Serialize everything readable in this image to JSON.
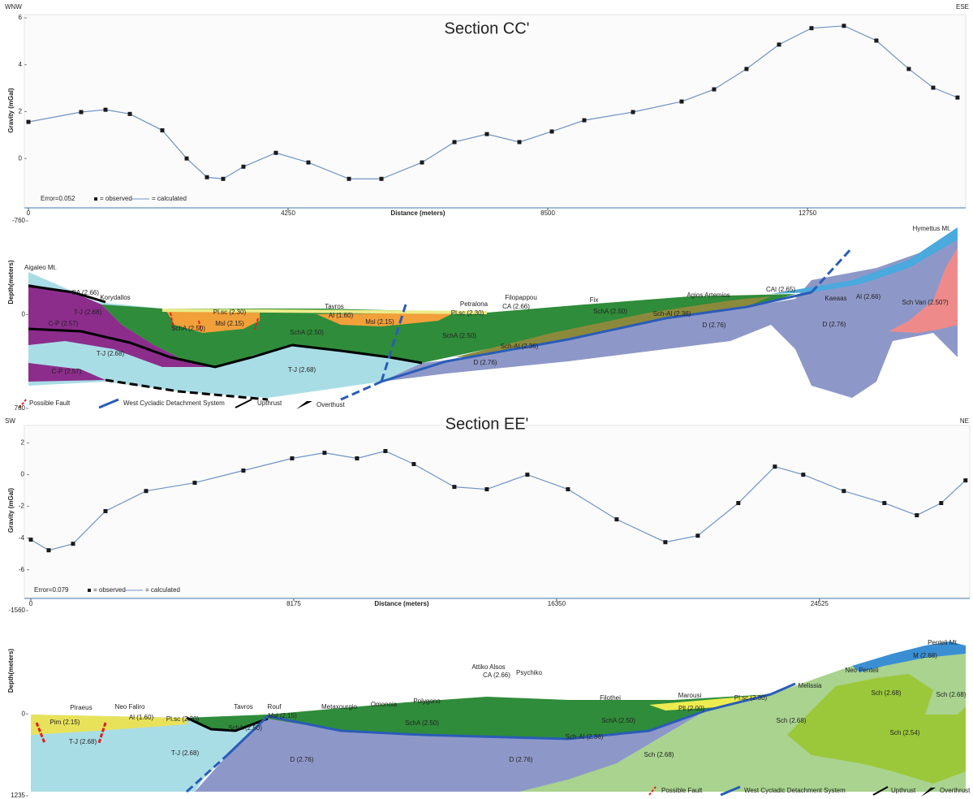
{
  "chart_data": [
    {
      "type": "line",
      "title": "Section CC'",
      "direction_left": "WNW",
      "direction_right": "ESE",
      "y_label": "Gravity (mGal)",
      "x_label": "Distance (meters)",
      "fit_label": "Error=0.052",
      "xlim": [
        0,
        15206
      ],
      "xticks": [
        0,
        4250,
        8500,
        12750
      ],
      "ylim": [
        -1.9,
        6
      ],
      "yticks": [
        0,
        2,
        4,
        6
      ],
      "x": [
        0,
        863,
        1262,
        1660,
        2191,
        2590,
        2922,
        3187,
        3519,
        4050,
        4582,
        5246,
        5777,
        6441,
        6972,
        7503,
        8035,
        8566,
        9097,
        9894,
        10690,
        11221,
        11752,
        12284,
        12815,
        13346,
        13877,
        14408,
        14807,
        15205
      ],
      "series": [
        {
          "name": "= observed",
          "color": "#1a1a1a",
          "values": [
            1.56,
            1.98,
            2.08,
            1.9,
            1.2,
            0,
            -0.8,
            -0.87,
            -0.35,
            0.24,
            -0.17,
            -0.87,
            -0.87,
            -0.17,
            0.7,
            1.04,
            0.7,
            1.15,
            1.63,
            1.98,
            2.43,
            2.95,
            3.82,
            4.86,
            5.56,
            5.66,
            5.03,
            3.82,
            3.02,
            2.6
          ]
        },
        {
          "name": "= calculated",
          "color": "#6f93c4",
          "values": [
            1.56,
            1.98,
            2.08,
            1.9,
            1.2,
            0,
            -0.8,
            -0.87,
            -0.35,
            0.24,
            -0.17,
            -0.87,
            -0.87,
            -0.17,
            0.7,
            1.04,
            0.7,
            1.15,
            1.63,
            1.98,
            2.43,
            2.95,
            3.82,
            4.86,
            5.56,
            5.66,
            5.03,
            3.82,
            3.02,
            2.6
          ]
        }
      ]
    },
    {
      "type": "section",
      "y_label": "Depth(meters)",
      "ylim": [
        -760,
        760
      ],
      "yticks": [
        -760,
        0,
        760
      ],
      "labels": [
        "Aigaleo Mt.",
        "CA (2.66)",
        "Korydallos",
        "T-J (2.68)",
        "C-P (2.57)",
        "Pl.sc (2.30)",
        "Msl (2.15)",
        "SchA (2.50)",
        "Tavros",
        "Al (1.60)",
        "Msl (2.15)",
        "SchA (2.50)",
        "T-J (2.68)",
        "T-J (2.68)",
        "C-P (2.57)",
        "Petralona",
        "Pl.sc (2.30)",
        "Filopappou",
        "CA (2.66)",
        "Fix",
        "SchA (2.50)",
        "Agios Artemios",
        "Sch-Al (2.36)",
        "SchA (2.50)",
        "Sch-Al (2.36)",
        "D (2.76)",
        "D (2.76)",
        "CAl (2.65)",
        "Kaeaas",
        "Al (2.66)",
        "Hymettus Mt.",
        "Sch Vari (2.50?)",
        "D (2.76)"
      ],
      "legend": [
        "Possible Fault",
        "West Cycladic Detachment System",
        "Upthrust",
        "Overthust"
      ]
    },
    {
      "type": "line",
      "title": "Section EE'",
      "direction_left": "SW",
      "direction_right": "NE",
      "y_label": "Gravity (mGal)",
      "x_label": "Distance (meters)",
      "fit_label": "Error=0.079",
      "xlim": [
        0,
        29070
      ],
      "xticks": [
        0,
        8175,
        16350,
        24525
      ],
      "ylim": [
        -7.4,
        2.9
      ],
      "yticks": [
        -6,
        -4,
        -2,
        0,
        2
      ],
      "x": [
        0,
        555,
        1312,
        2321,
        3583,
        5096,
        6610,
        8124,
        9133,
        10142,
        11025,
        11908,
        13170,
        14179,
        15440,
        16702,
        18216,
        19730,
        20739,
        22000,
        23136,
        24019,
        25280,
        26542,
        27551,
        28308,
        29065
      ],
      "series": [
        {
          "name": "= observed",
          "color": "#1a1a1a",
          "values": [
            -4.1,
            -4.77,
            -4.36,
            -2.3,
            -1.03,
            -0.51,
            0.26,
            1.03,
            1.38,
            1.03,
            1.49,
            0.67,
            -0.77,
            -0.92,
            0,
            -0.92,
            -2.82,
            -4.26,
            -3.85,
            -1.79,
            0.51,
            0,
            -1.03,
            -1.79,
            -2.56,
            -1.79,
            -0.36
          ]
        },
        {
          "name": "= calculated",
          "color": "#6f93c4",
          "values": [
            -4.1,
            -4.77,
            -4.36,
            -2.3,
            -1.03,
            -0.51,
            0.26,
            1.03,
            1.38,
            1.03,
            1.49,
            0.67,
            -0.77,
            -0.92,
            0,
            -0.92,
            -2.82,
            -4.26,
            -3.85,
            -1.79,
            0.51,
            0,
            -1.03,
            -1.79,
            -2.56,
            -1.79,
            -0.36
          ]
        }
      ]
    },
    {
      "type": "section",
      "y_label": "Depth(meters)",
      "ylim": [
        -1560,
        1235
      ],
      "yticks": [
        -1560,
        0,
        1235
      ],
      "labels": [
        "Piraeus",
        "Neo Faliro",
        "Pim (2.15)",
        "Al (1.60)",
        "Pl.sc (2.30)",
        "T-J (2.68)",
        "Tavros",
        "Rouf",
        "Msl (2.15)",
        "SchA (2.50)",
        "T-J (2.68)",
        "Metaxourgio",
        "Omonoia",
        "Polygono",
        "Attiko Alsos",
        "CA (2.66)",
        "Psychiko",
        "Filothei",
        "Marousi",
        "Pl.sc (2.30)",
        "Melissia",
        "Neo Penteli",
        "Penteli Mt.",
        "M (2.68)",
        "SchA (2.50)",
        "SchA (2.50)",
        "Pll (2.00)",
        "Sch-Al (2.36)",
        "Sch (2.68)",
        "Sch (2.68)",
        "Sch (2.68)",
        "Sch (2.54)",
        "Sch (2.68)",
        "D (2.76)",
        "D (2.76)"
      ],
      "legend": [
        "Possible Fault",
        "West Cycladic Detachment System",
        "Upthrust",
        "Overthrust"
      ]
    }
  ]
}
